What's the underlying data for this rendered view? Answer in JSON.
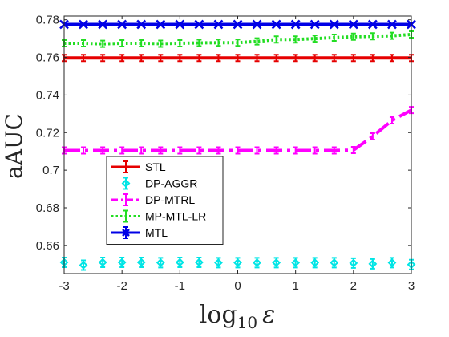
{
  "chart_data": {
    "type": "line",
    "title": "",
    "xlabel": "log10 ε",
    "xlabel_main": "log",
    "xlabel_sub": "10",
    "xlabel_var": "ε",
    "ylabel": "aAUC",
    "xlim": [
      -3,
      3
    ],
    "ylim": [
      0.645,
      0.782
    ],
    "xticks": [
      "-3",
      "-2",
      "-1",
      "0",
      "1",
      "2",
      "3"
    ],
    "yticks": [
      "0.66",
      "0.68",
      "0.7",
      "0.72",
      "0.74",
      "0.76",
      "0.78"
    ],
    "grid": false,
    "legend_position": "lower-left",
    "x": [
      -3,
      -2.667,
      -2.333,
      -2,
      -1.667,
      -1.333,
      -1,
      -0.667,
      -0.333,
      0,
      0.333,
      0.667,
      1,
      1.333,
      1.667,
      2,
      2.333,
      2.667,
      3
    ],
    "series": [
      {
        "name": "STL",
        "color": "#e60000",
        "style": "solid",
        "marker": "none",
        "values": [
          0.7597,
          0.7597,
          0.7597,
          0.7597,
          0.7597,
          0.7597,
          0.7597,
          0.7597,
          0.7597,
          0.7597,
          0.7597,
          0.7597,
          0.7597,
          0.7597,
          0.7597,
          0.7597,
          0.7597,
          0.7597,
          0.7597
        ]
      },
      {
        "name": "DP-AGGR",
        "color": "#00e5e5",
        "style": "none",
        "marker": "diamond",
        "values": [
          0.651,
          0.6495,
          0.651,
          0.651,
          0.651,
          0.6508,
          0.651,
          0.651,
          0.6508,
          0.6508,
          0.6508,
          0.6508,
          0.6508,
          0.6508,
          0.6508,
          0.6506,
          0.6502,
          0.6508,
          0.6498
        ]
      },
      {
        "name": "DP-MTRL",
        "color": "#ff00ff",
        "style": "dashdot",
        "marker": "none",
        "values": [
          0.7105,
          0.7105,
          0.7105,
          0.7105,
          0.7105,
          0.7105,
          0.7105,
          0.7105,
          0.7105,
          0.7105,
          0.7105,
          0.7105,
          0.7105,
          0.7105,
          0.7105,
          0.7107,
          0.718,
          0.7265,
          0.732
        ]
      },
      {
        "name": "MP-MTL-LR",
        "color": "#22dd22",
        "style": "dotted",
        "marker": "none",
        "values": [
          0.7675,
          0.7675,
          0.7672,
          0.7675,
          0.7675,
          0.7673,
          0.7675,
          0.7677,
          0.7678,
          0.7678,
          0.7685,
          0.7695,
          0.7695,
          0.77,
          0.7705,
          0.771,
          0.7712,
          0.7715,
          0.7722
        ]
      },
      {
        "name": "MTL",
        "color": "#0000e6",
        "style": "solid",
        "marker": "x",
        "values": [
          0.7775,
          0.7775,
          0.7775,
          0.7775,
          0.7775,
          0.7775,
          0.7775,
          0.7775,
          0.7775,
          0.7775,
          0.7775,
          0.7775,
          0.7775,
          0.7775,
          0.7775,
          0.7775,
          0.7775,
          0.7775,
          0.7775
        ]
      }
    ]
  }
}
